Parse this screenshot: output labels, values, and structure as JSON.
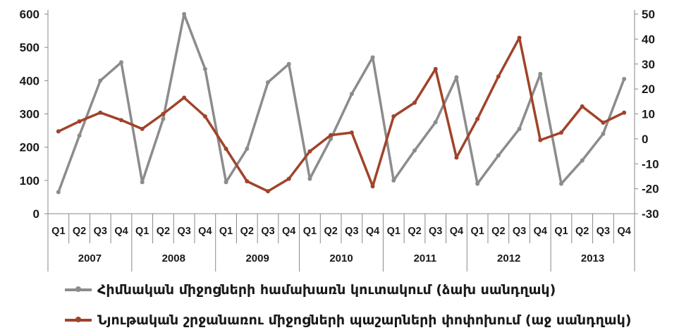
{
  "chart_data": {
    "type": "line",
    "categories": [
      "Q1",
      "Q2",
      "Q3",
      "Q4",
      "Q1",
      "Q2",
      "Q3",
      "Q4",
      "Q1",
      "Q2",
      "Q3",
      "Q4",
      "Q1",
      "Q2",
      "Q3",
      "Q4",
      "Q1",
      "Q2",
      "Q3",
      "Q4",
      "Q1",
      "Q2",
      "Q3",
      "Q4",
      "Q1",
      "Q2",
      "Q3",
      "Q4"
    ],
    "years": [
      "2007",
      "2008",
      "2009",
      "2010",
      "2011",
      "2012",
      "2013"
    ],
    "ylim_left": [
      0,
      600
    ],
    "yticks_left": [
      0,
      100,
      200,
      300,
      400,
      500,
      600
    ],
    "ylim_right": [
      -30,
      50
    ],
    "yticks_right": [
      -30,
      -20,
      -10,
      0,
      10,
      20,
      30,
      40,
      50
    ],
    "series": [
      {
        "name": "Հիմնական միջոցների համախառն կուտակում (ձախ սանդղակ)",
        "axis": "left",
        "color": "#8c8c8c",
        "values": [
          65,
          235,
          400,
          455,
          95,
          285,
          600,
          435,
          95,
          195,
          395,
          450,
          105,
          225,
          360,
          470,
          100,
          190,
          275,
          410,
          90,
          175,
          255,
          420,
          90,
          160,
          240,
          405
        ]
      },
      {
        "name": "Նյութական շրջանառու միջոցների պաշարների փոփոխում (աջ սանդղակ)",
        "axis": "right",
        "color": "#a0432a",
        "values": [
          3,
          7,
          10.5,
          7.5,
          4,
          10,
          16.5,
          9,
          -4,
          -17,
          -21,
          -16,
          -5,
          1.5,
          2.5,
          -19,
          9,
          14.5,
          28,
          -7.5,
          8,
          25,
          40.5,
          -0.5,
          2.5,
          13,
          6.5,
          10.5
        ]
      }
    ],
    "grid": false,
    "legend_position": "bottom"
  },
  "legend": {
    "item1": "Հիմնական միջոցների համախառն կուտակում (ձախ սանդղակ)",
    "item2": "Նյութական շրջանառու միջոցների պաշարների փոփոխում (աջ սանդղակ)"
  }
}
